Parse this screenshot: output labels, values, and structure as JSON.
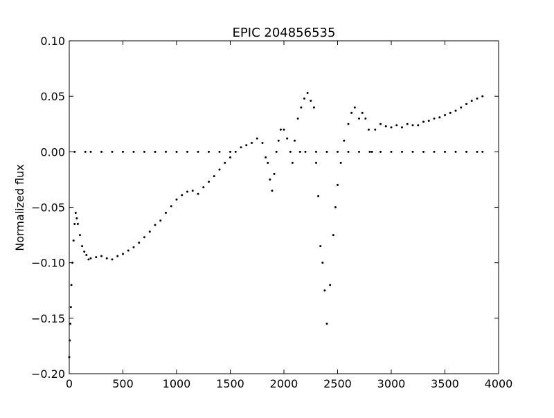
{
  "chart_data": {
    "type": "scatter",
    "title": "EPIC 204856535",
    "y_label": "Normalized flux",
    "color": "#000000",
    "x": [
      0,
      5,
      10,
      15,
      20,
      30,
      40,
      50,
      60,
      70,
      80,
      100,
      120,
      140,
      160,
      180,
      200,
      250,
      300,
      350,
      400,
      450,
      500,
      550,
      600,
      650,
      700,
      750,
      800,
      850,
      900,
      950,
      1000,
      1050,
      1100,
      1150,
      1200,
      1250,
      1300,
      1350,
      1400,
      1450,
      1500,
      1550,
      1600,
      1650,
      1700,
      1750,
      1800,
      1830,
      1850,
      1870,
      1890,
      1910,
      1930,
      1950,
      1970,
      2000,
      2030,
      2060,
      2080,
      2100,
      2130,
      2160,
      2190,
      2220,
      2250,
      2280,
      2300,
      2320,
      2340,
      2360,
      2380,
      2400,
      2430,
      2460,
      2480,
      2500,
      2530,
      2560,
      2600,
      2630,
      2660,
      2700,
      2730,
      2760,
      2790,
      2820,
      2850,
      2900,
      2950,
      3000,
      3050,
      3100,
      3150,
      3200,
      3250,
      3300,
      3350,
      3400,
      3450,
      3500,
      3550,
      3600,
      3650,
      3700,
      3750,
      3800,
      3850,
      50,
      150,
      200,
      300,
      400,
      500,
      600,
      700,
      800,
      900,
      1000,
      1100,
      1200,
      1300,
      1400,
      1500,
      2150,
      2200,
      2300,
      2400,
      2500,
      2600,
      2700,
      2800,
      2900,
      3000,
      3100,
      3200,
      3300,
      3400,
      3500,
      3600,
      3700,
      3800,
      3850
    ],
    "y": [
      -0.185,
      -0.17,
      -0.155,
      -0.14,
      -0.12,
      -0.1,
      -0.08,
      -0.065,
      -0.055,
      -0.06,
      -0.065,
      -0.075,
      -0.085,
      -0.09,
      -0.093,
      -0.097,
      -0.096,
      -0.095,
      -0.094,
      -0.096,
      -0.097,
      -0.094,
      -0.092,
      -0.089,
      -0.086,
      -0.082,
      -0.077,
      -0.072,
      -0.066,
      -0.062,
      -0.055,
      -0.049,
      -0.043,
      -0.039,
      -0.036,
      -0.035,
      -0.038,
      -0.032,
      -0.027,
      -0.022,
      -0.016,
      -0.01,
      -0.005,
      0.0,
      0.004,
      0.006,
      0.008,
      0.012,
      0.008,
      -0.005,
      -0.01,
      -0.025,
      -0.035,
      -0.02,
      0.0,
      0.01,
      0.02,
      0.02,
      0.012,
      0.0,
      -0.01,
      0.01,
      0.03,
      0.04,
      0.048,
      0.053,
      0.046,
      0.04,
      -0.01,
      -0.04,
      -0.085,
      -0.1,
      -0.125,
      -0.155,
      -0.12,
      -0.075,
      -0.05,
      -0.03,
      -0.01,
      0.01,
      0.025,
      0.035,
      0.04,
      0.03,
      0.035,
      0.03,
      0.02,
      0.0,
      0.02,
      0.025,
      0.023,
      0.022,
      0.024,
      0.022,
      0.025,
      0.024,
      0.024,
      0.027,
      0.028,
      0.03,
      0.031,
      0.033,
      0.035,
      0.037,
      0.04,
      0.043,
      0.046,
      0.048,
      0.05,
      0,
      0,
      0,
      0,
      0,
      0,
      0,
      0,
      0,
      0,
      0,
      0,
      0,
      0,
      0,
      0,
      0,
      0,
      0,
      0,
      0,
      0,
      0,
      0,
      0,
      0,
      0,
      0,
      0,
      0,
      0,
      0,
      0,
      0,
      0
    ],
    "xlim": [
      0,
      4000
    ],
    "xticks": [
      0,
      500,
      1000,
      1500,
      2000,
      2500,
      3000,
      3500,
      4000
    ],
    "ylim": [
      -0.2,
      0.1
    ],
    "yticks": [
      {
        "value": -0.2,
        "label": "−0.20"
      },
      {
        "value": -0.15,
        "label": "−0.15"
      },
      {
        "value": -0.1,
        "label": "−0.10"
      },
      {
        "value": -0.05,
        "label": "−0.05"
      },
      {
        "value": 0,
        "label": "0.00"
      },
      {
        "value": 0.05,
        "label": "0.05"
      },
      {
        "value": 0.1,
        "label": "0.10"
      }
    ],
    "grid": false
  }
}
